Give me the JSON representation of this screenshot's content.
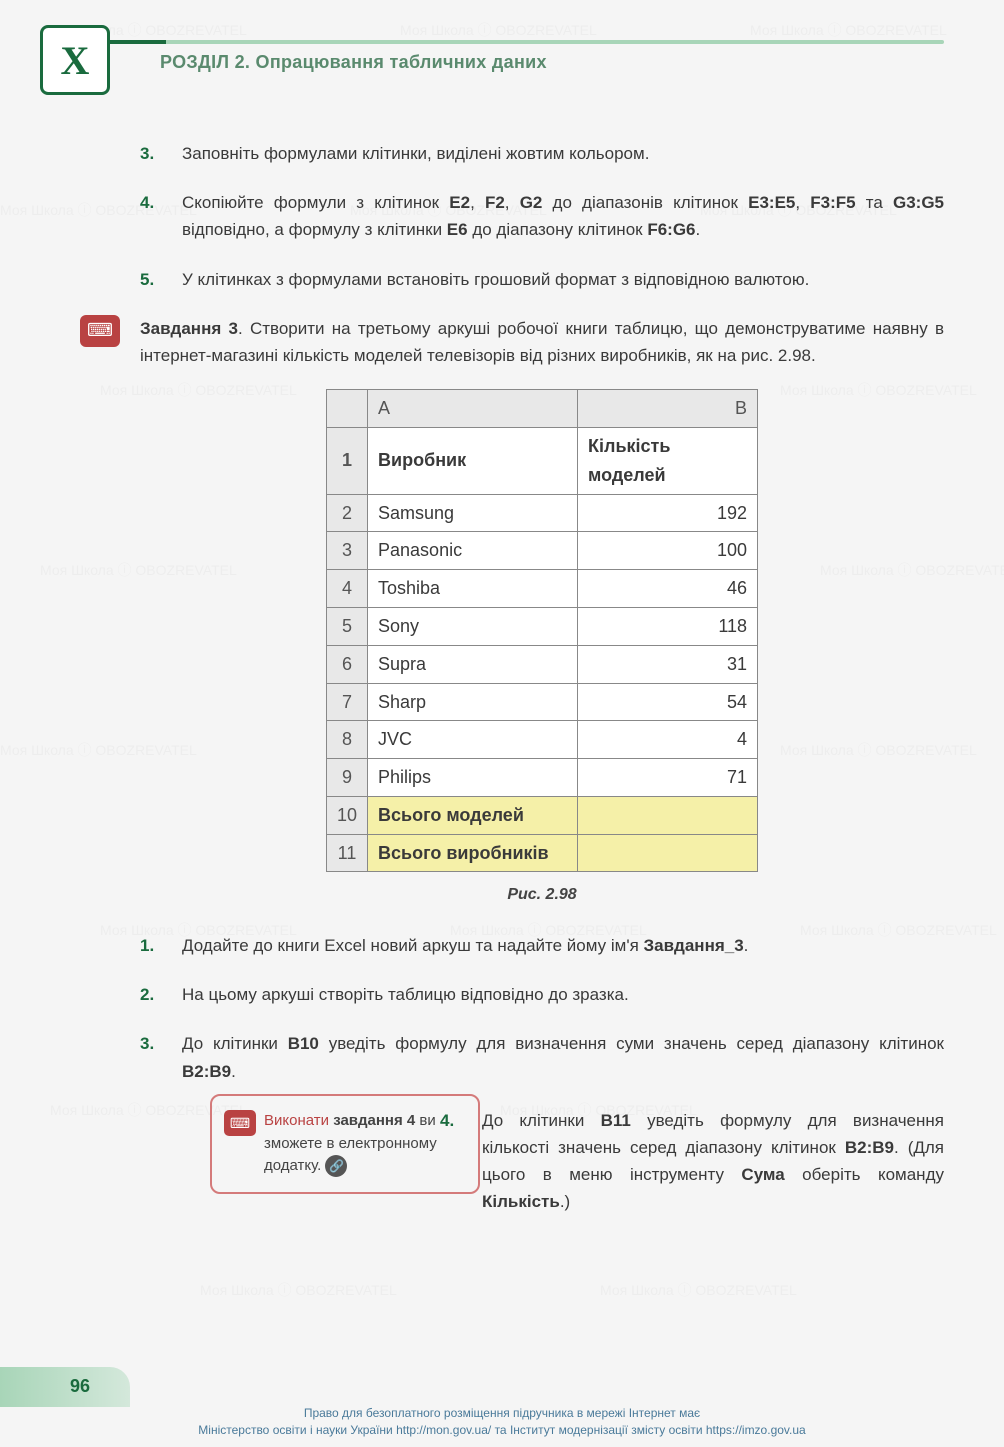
{
  "header": {
    "logo": "X",
    "title": "РОЗДІЛ 2. Опрацювання табличних даних"
  },
  "items_top": [
    {
      "num": "3.",
      "text": "Заповніть формулами клітинки, виділені жовтим кольором."
    },
    {
      "num": "4.",
      "text": "Скопіюйте формули з клітинок <b>E2</b>, <b>F2</b>, <b>G2</b> до діапазонів клітинок <b>E3:E5</b>, <b>F3:F5</b> та <b>G3:G5</b> відповідно, а формулу з клітинки <b>E6</b> до діапазону клітинок <b>F6:G6</b>."
    },
    {
      "num": "5.",
      "text": "У клітинках з формулами встановіть грошовий формат з відповідною валютою."
    }
  ],
  "task": {
    "label": "Завдання 3",
    "text": ". Створити на третьому аркуші робочої книги таблицю, що демонструватиме наявну в інтернет-магазині кількість моделей телевізорів від різних виробників, як на рис. 2.98."
  },
  "table": {
    "col_letters": [
      "A",
      "B"
    ],
    "headers": [
      "Виробник",
      "Кількість моделей"
    ],
    "rows": [
      {
        "n": "1",
        "a": "Виробник",
        "b": "Кількість моделей",
        "header": true
      },
      {
        "n": "2",
        "a": "Samsung",
        "b": "192"
      },
      {
        "n": "3",
        "a": "Panasonic",
        "b": "100"
      },
      {
        "n": "4",
        "a": "Toshiba",
        "b": "46"
      },
      {
        "n": "5",
        "a": "Sony",
        "b": "118"
      },
      {
        "n": "6",
        "a": "Supra",
        "b": "31"
      },
      {
        "n": "7",
        "a": "Sharp",
        "b": "54"
      },
      {
        "n": "8",
        "a": "JVC",
        "b": "4"
      },
      {
        "n": "9",
        "a": "Philips",
        "b": "71"
      },
      {
        "n": "10",
        "a": "Всього моделей",
        "b": "",
        "yellow": true
      },
      {
        "n": "11",
        "a": "Всього виробників",
        "b": "",
        "yellow": true
      }
    ],
    "caption": "Рис. 2.98",
    "styling": {
      "border_color": "#888888",
      "header_bg": "#e8e8e8",
      "yellow_bg": "#f5f0a8",
      "font_size": 18,
      "col_a_width": 210,
      "col_b_width": 180,
      "row_head_width": 36
    }
  },
  "items_bottom": [
    {
      "num": "1.",
      "text": "Додайте до книги Excel новий аркуш та надайте йому ім'я <b>Завдання_3</b>."
    },
    {
      "num": "2.",
      "text": "На цьому аркуші створіть таблицю відповідно до зразка."
    },
    {
      "num": "3.",
      "text": "До клітинки <b>B10</b> уведіть формулу для визначення суми значень серед діапазону клітинок <b>B2:B9</b>."
    },
    {
      "num": "4.",
      "text": "До клітинки <b>B11</b> уведіть формулу для визначення кількості значень серед діапазону клітинок <b>B2:B9</b>. (Для цього в меню інструменту <b>Сума</b> оберіть команду <b>Кількість</b>.)"
    }
  ],
  "sidebar": {
    "exec": "Виконати",
    "bold": "завдання 4",
    "rest": " ви зможете в електронному додатку."
  },
  "page_number": "96",
  "footer": {
    "line1": "Право для безоплатного розміщення підручника в мережі Інтернет має",
    "line2": "Міністерство освіти і науки України http://mon.gov.ua/ та Інститут модернізації змісту освіти https://imzo.gov.ua"
  },
  "watermark": "Моя Школа ⓘ OBOZREVATEL",
  "colors": {
    "primary_green": "#1a6b3e",
    "light_green": "#a8d5b8",
    "red_accent": "#b94242",
    "border_pink": "#d47a7a",
    "text": "#3a3a3a",
    "footer_text": "#4a7a9a"
  }
}
